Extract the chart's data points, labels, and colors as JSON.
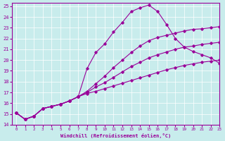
{
  "xlabel": "Windchill (Refroidissement éolien,°C)",
  "xlim": [
    -0.5,
    23
  ],
  "ylim": [
    14,
    25.3
  ],
  "xticks": [
    0,
    1,
    2,
    3,
    4,
    5,
    6,
    7,
    8,
    9,
    10,
    11,
    12,
    13,
    14,
    15,
    16,
    17,
    18,
    19,
    20,
    21,
    22,
    23
  ],
  "yticks": [
    14,
    15,
    16,
    17,
    18,
    19,
    20,
    21,
    22,
    23,
    24,
    25
  ],
  "bg_color": "#c8ecec",
  "line_color": "#990099",
  "grid_color": "#ffffff",
  "curve_x": [
    0,
    1,
    2,
    3,
    4,
    5,
    6,
    7,
    8,
    9,
    10,
    11,
    12,
    13,
    14,
    15,
    16,
    17,
    18,
    19,
    20,
    21,
    22,
    23
  ],
  "curve_y": [
    15.1,
    14.5,
    14.8,
    15.5,
    15.7,
    15.9,
    16.2,
    16.6,
    19.2,
    20.7,
    21.5,
    22.6,
    23.5,
    24.5,
    24.85,
    25.1,
    24.5,
    23.3,
    22.0,
    21.2,
    20.8,
    20.5,
    20.2,
    19.7
  ],
  "line_top_x": [
    0,
    1,
    2,
    3,
    4,
    5,
    6,
    7,
    8,
    9,
    10,
    11,
    12,
    13,
    14,
    15,
    16,
    17,
    18,
    19,
    20,
    21,
    22,
    23
  ],
  "line_top_y": [
    15.1,
    14.5,
    14.8,
    15.5,
    15.7,
    15.9,
    16.2,
    16.6,
    17.1,
    17.8,
    18.5,
    19.3,
    20.0,
    20.7,
    21.3,
    21.8,
    22.1,
    22.3,
    22.5,
    22.7,
    22.85,
    22.9,
    23.0,
    23.1
  ],
  "line_mid_x": [
    0,
    1,
    2,
    3,
    4,
    5,
    6,
    7,
    8,
    9,
    10,
    11,
    12,
    13,
    14,
    15,
    16,
    17,
    18,
    19,
    20,
    21,
    22,
    23
  ],
  "line_mid_y": [
    15.1,
    14.5,
    14.8,
    15.5,
    15.7,
    15.9,
    16.2,
    16.6,
    17.0,
    17.5,
    17.9,
    18.4,
    18.9,
    19.4,
    19.8,
    20.2,
    20.5,
    20.75,
    21.0,
    21.2,
    21.3,
    21.45,
    21.55,
    21.65
  ],
  "line_bot_x": [
    0,
    1,
    2,
    3,
    4,
    5,
    6,
    7,
    8,
    9,
    10,
    11,
    12,
    13,
    14,
    15,
    16,
    17,
    18,
    19,
    20,
    21,
    22,
    23
  ],
  "line_bot_y": [
    15.1,
    14.5,
    14.8,
    15.5,
    15.7,
    15.9,
    16.2,
    16.6,
    16.9,
    17.1,
    17.35,
    17.6,
    17.85,
    18.1,
    18.35,
    18.6,
    18.85,
    19.1,
    19.3,
    19.5,
    19.65,
    19.8,
    19.9,
    20.0
  ]
}
